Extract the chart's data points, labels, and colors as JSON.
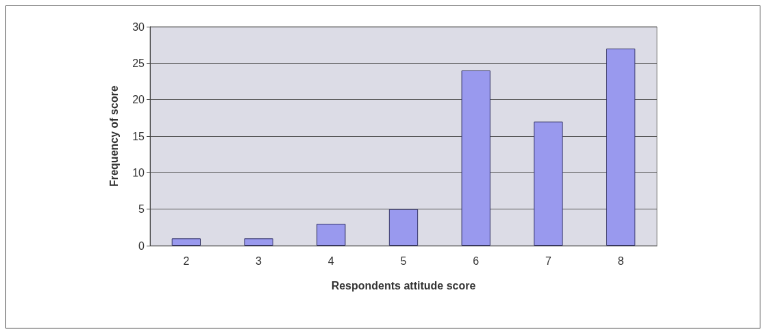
{
  "chart_data": {
    "type": "bar",
    "xlabel": "Respondents attitude score",
    "ylabel": "Frequency of score",
    "categories": [
      "2",
      "3",
      "4",
      "5",
      "6",
      "7",
      "8"
    ],
    "values": [
      1,
      1,
      3,
      5,
      24,
      17,
      27
    ],
    "color": "#9999ee",
    "ylim": [
      0,
      30
    ],
    "yticks": [
      0,
      5,
      10,
      15,
      20,
      25,
      30
    ],
    "grid": "y"
  }
}
